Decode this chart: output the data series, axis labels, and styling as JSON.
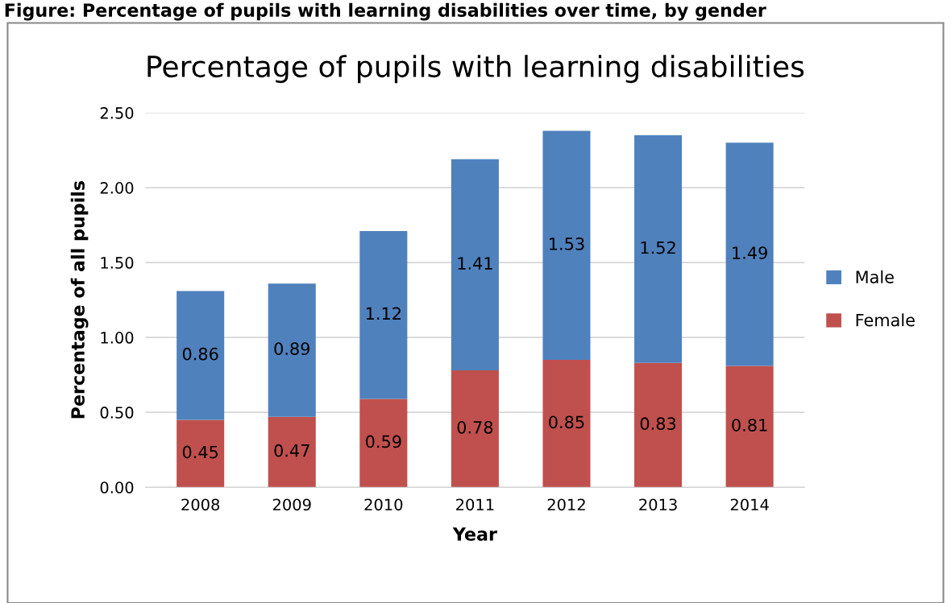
{
  "chart_data": {
    "type": "bar",
    "title": "Percentage of pupils with learning disabilities",
    "annotations": [
      "Figure: Percentage of pupils with learning disabilities over time, by gender"
    ],
    "xlabel": "Year",
    "ylabel": "Percentage of all pupils",
    "categories": [
      "2008",
      "2009",
      "2010",
      "2011",
      "2012",
      "2013",
      "2014"
    ],
    "stacked": true,
    "series": [
      {
        "name": "Female",
        "color": "#c0504d",
        "values": [
          0.45,
          0.47,
          0.59,
          0.78,
          0.85,
          0.83,
          0.81
        ]
      },
      {
        "name": "Male",
        "color": "#4f81bd",
        "values": [
          0.86,
          0.89,
          1.12,
          1.41,
          1.53,
          1.52,
          1.49
        ]
      }
    ],
    "ylim": [
      0,
      2.5
    ],
    "yticks": [
      {
        "value": 0,
        "label": "0.00"
      },
      {
        "value": 0.5,
        "label": "0.50"
      },
      {
        "value": 1,
        "label": "1.00"
      },
      {
        "value": 1.5,
        "label": "1.50"
      },
      {
        "value": 2,
        "label": "2.00"
      },
      {
        "value": 2.5,
        "label": "2.50"
      }
    ],
    "grid": "y",
    "legend": "right",
    "data_labels": true
  }
}
